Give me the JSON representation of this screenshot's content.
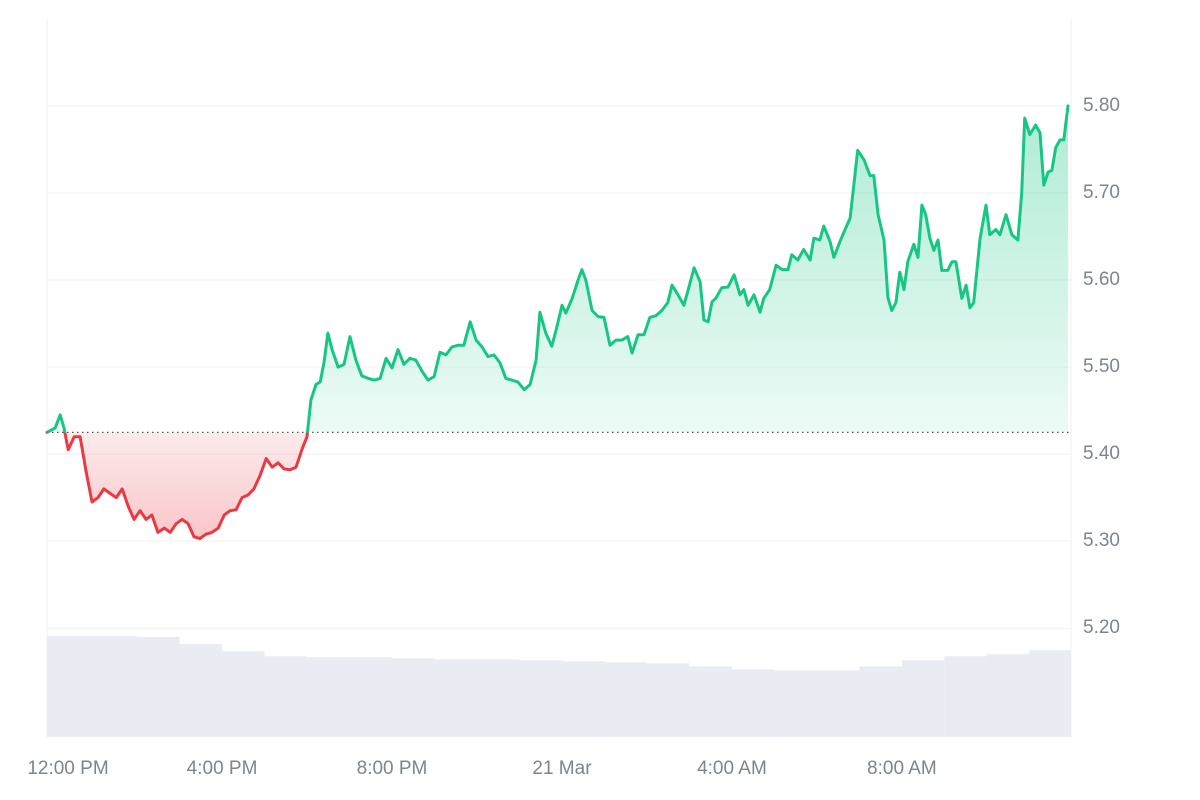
{
  "chart_data": {
    "type": "price_line",
    "x": [
      -0.12,
      0.07,
      0.19,
      0.28,
      0.38,
      0.52,
      0.66,
      0.8,
      0.94,
      1.08,
      1.22,
      1.36,
      1.51,
      1.65,
      1.79,
      1.93,
      2.07,
      2.21,
      2.35,
      2.49,
      2.64,
      2.78,
      2.92,
      3.06,
      3.2,
      3.34,
      3.48,
      3.62,
      3.76,
      3.91,
      4.05,
      4.19,
      4.33,
      4.47,
      4.61,
      4.75,
      4.89,
      5.04,
      5.18,
      5.32,
      5.46,
      5.6,
      5.74,
      5.88,
      6.0,
      6.09,
      6.21,
      6.31,
      6.4,
      6.49,
      6.59,
      6.73,
      6.87,
      7.01,
      7.15,
      7.29,
      7.44,
      7.58,
      7.72,
      7.86,
      8.0,
      8.14,
      8.28,
      8.42,
      8.56,
      8.71,
      8.85,
      8.99,
      9.13,
      9.27,
      9.41,
      9.55,
      9.69,
      9.84,
      9.98,
      10.12,
      10.26,
      10.4,
      10.54,
      10.68,
      10.82,
      10.96,
      11.11,
      11.25,
      11.39,
      11.48,
      11.62,
      11.76,
      11.86,
      12.0,
      12.09,
      12.24,
      12.38,
      12.47,
      12.56,
      12.71,
      12.85,
      12.99,
      13.13,
      13.27,
      13.41,
      13.55,
      13.65,
      13.79,
      13.93,
      14.07,
      14.21,
      14.35,
      14.49,
      14.59,
      14.73,
      14.87,
      15.01,
      15.11,
      15.25,
      15.34,
      15.44,
      15.53,
      15.62,
      15.76,
      15.91,
      16.05,
      16.19,
      16.28,
      16.38,
      16.52,
      16.66,
      16.75,
      16.89,
      17.04,
      17.18,
      17.32,
      17.41,
      17.55,
      17.69,
      17.84,
      17.93,
      18.07,
      18.16,
      18.31,
      18.4,
      18.54,
      18.68,
      18.78,
      18.96,
      19.11,
      19.25,
      19.34,
      19.44,
      19.58,
      19.67,
      19.76,
      19.86,
      19.95,
      20.05,
      20.14,
      20.28,
      20.38,
      20.47,
      20.56,
      20.66,
      20.75,
      20.85,
      20.94,
      21.08,
      21.18,
      21.27,
      21.41,
      21.51,
      21.6,
      21.69,
      21.84,
      21.98,
      22.07,
      22.21,
      22.31,
      22.45,
      22.59,
      22.73,
      22.82,
      22.89,
      23.01,
      23.15,
      23.25,
      23.34,
      23.44,
      23.53,
      23.62,
      23.72,
      23.81,
      23.91
    ],
    "values": [
      5.425,
      5.43,
      5.445,
      5.43,
      5.405,
      5.42,
      5.42,
      5.38,
      5.345,
      5.35,
      5.36,
      5.355,
      5.35,
      5.36,
      5.34,
      5.325,
      5.335,
      5.325,
      5.33,
      5.31,
      5.315,
      5.31,
      5.32,
      5.325,
      5.32,
      5.305,
      5.303,
      5.308,
      5.31,
      5.315,
      5.33,
      5.335,
      5.336,
      5.35,
      5.353,
      5.36,
      5.375,
      5.395,
      5.385,
      5.39,
      5.383,
      5.382,
      5.385,
      5.405,
      5.42,
      5.462,
      5.48,
      5.483,
      5.505,
      5.539,
      5.52,
      5.5,
      5.503,
      5.535,
      5.508,
      5.49,
      5.487,
      5.485,
      5.487,
      5.51,
      5.499,
      5.52,
      5.503,
      5.51,
      5.508,
      5.495,
      5.485,
      5.489,
      5.517,
      5.514,
      5.523,
      5.525,
      5.525,
      5.552,
      5.531,
      5.523,
      5.512,
      5.514,
      5.505,
      5.487,
      5.485,
      5.483,
      5.474,
      5.48,
      5.508,
      5.563,
      5.539,
      5.524,
      5.542,
      5.571,
      5.562,
      5.579,
      5.6,
      5.612,
      5.6,
      5.565,
      5.558,
      5.557,
      5.525,
      5.531,
      5.531,
      5.535,
      5.516,
      5.537,
      5.537,
      5.557,
      5.559,
      5.565,
      5.574,
      5.594,
      5.583,
      5.571,
      5.596,
      5.614,
      5.598,
      5.554,
      5.552,
      5.575,
      5.579,
      5.591,
      5.592,
      5.606,
      5.583,
      5.589,
      5.571,
      5.583,
      5.563,
      5.579,
      5.589,
      5.617,
      5.612,
      5.612,
      5.629,
      5.623,
      5.635,
      5.623,
      5.648,
      5.646,
      5.662,
      5.644,
      5.626,
      5.644,
      5.66,
      5.671,
      5.749,
      5.738,
      5.72,
      5.72,
      5.675,
      5.646,
      5.58,
      5.565,
      5.574,
      5.609,
      5.589,
      5.621,
      5.641,
      5.626,
      5.686,
      5.675,
      5.648,
      5.634,
      5.646,
      5.611,
      5.611,
      5.621,
      5.621,
      5.579,
      5.594,
      5.568,
      5.574,
      5.648,
      5.686,
      5.652,
      5.658,
      5.652,
      5.675,
      5.652,
      5.646,
      5.7,
      5.786,
      5.767,
      5.778,
      5.769,
      5.709,
      5.724,
      5.726,
      5.752,
      5.761,
      5.761,
      5.8
    ],
    "baseline": 5.425,
    "up_color": "#16c784",
    "down_color": "#ea3943",
    "volume": {
      "x": [
        -0.12,
        1,
        2,
        3,
        4,
        5,
        6,
        7,
        8,
        9,
        10,
        11,
        12,
        13,
        14,
        15,
        16,
        17,
        18,
        19,
        20,
        21,
        22,
        23
      ],
      "values": [
        100,
        100,
        99,
        92,
        85,
        80,
        79,
        79,
        78,
        77,
        77,
        76,
        75,
        74,
        73,
        70,
        67,
        66,
        66,
        70,
        76,
        80,
        82,
        86
      ],
      "lim": [
        0,
        100
      ],
      "color": "#e9edf3"
    },
    "xlim": [
      -0.12,
      23.98
    ],
    "ylim": [
      5.075,
      5.901
    ],
    "xticks": [
      {
        "value": 0,
        "label": "12:00 PM"
      },
      {
        "value": 4,
        "label": "4:00 PM"
      },
      {
        "value": 8,
        "label": "8:00 PM"
      },
      {
        "value": 12,
        "label": "21 Mar"
      },
      {
        "value": 16,
        "label": "4:00 AM"
      },
      {
        "value": 20,
        "label": "8:00 AM"
      }
    ],
    "yticks": [
      {
        "value": 5.2,
        "label": "5.20"
      },
      {
        "value": 5.3,
        "label": "5.30"
      },
      {
        "value": 5.4,
        "label": "5.40"
      },
      {
        "value": 5.5,
        "label": "5.50"
      },
      {
        "value": 5.6,
        "label": "5.60"
      },
      {
        "value": 5.7,
        "label": "5.70"
      },
      {
        "value": 5.8,
        "label": "5.80"
      }
    ],
    "grid": true
  }
}
